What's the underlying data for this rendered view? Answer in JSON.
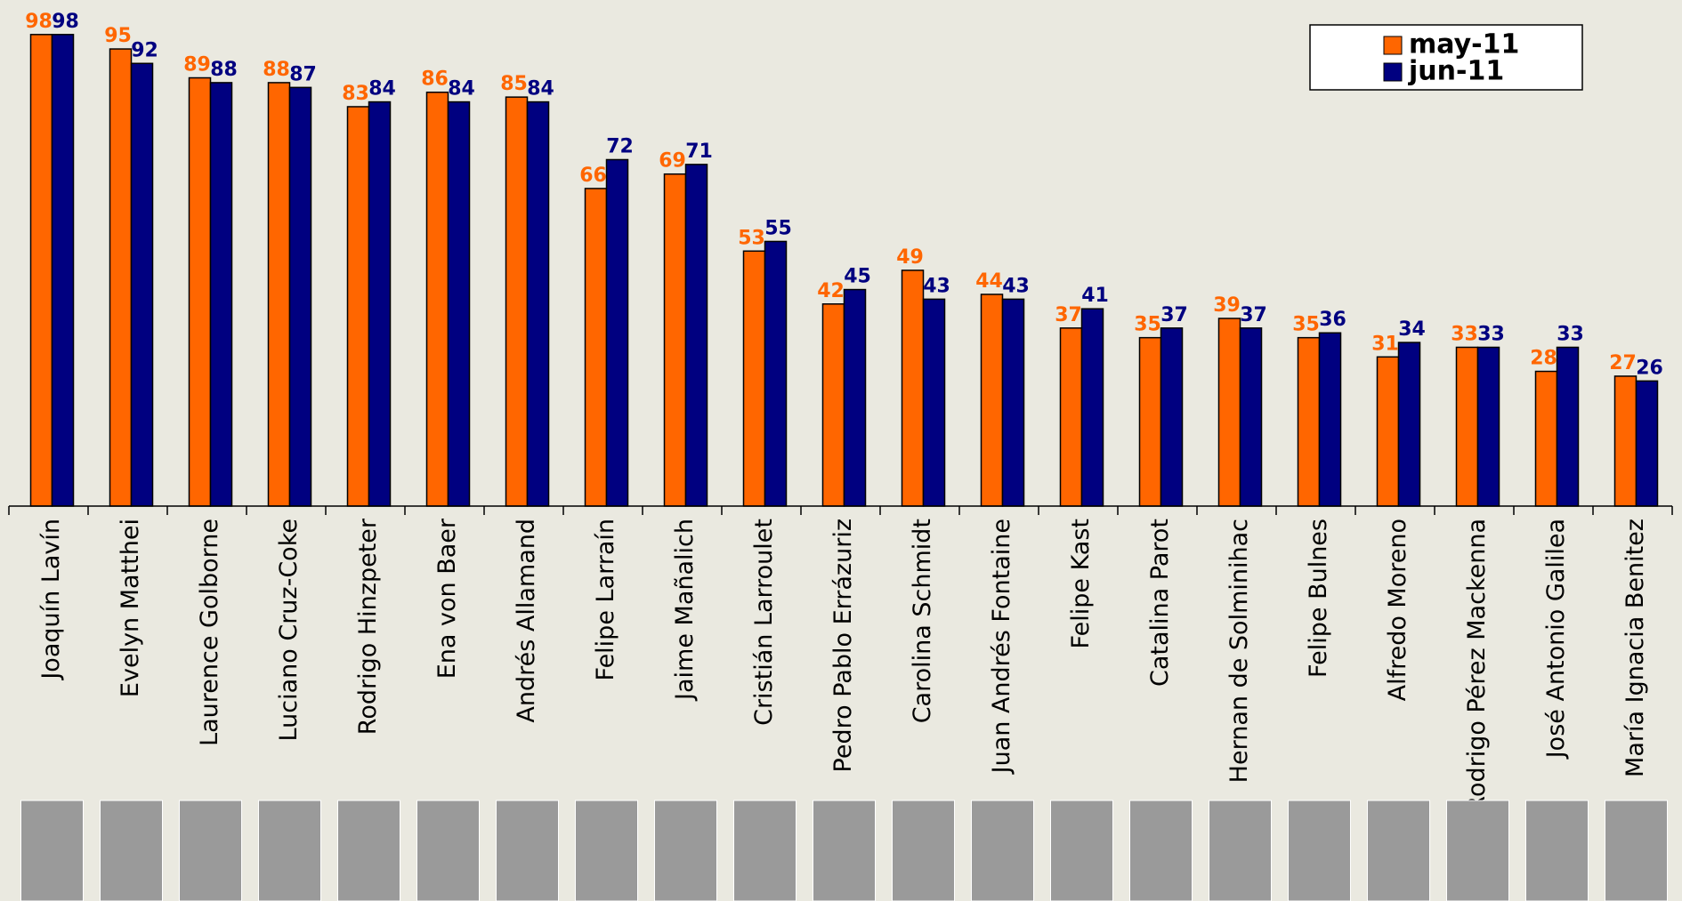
{
  "chart_data": {
    "type": "bar",
    "categories": [
      "Joaquín Lavín",
      "Evelyn Matthei",
      "Laurence Golborne",
      "Luciano Cruz-Coke",
      "Rodrigo Hinzpeter",
      "Ena von Baer",
      "Andrés Allamand",
      "Felipe Larraín",
      "Jaime Mañalich",
      "Cristián Larroulet",
      "Pedro Pablo Errázuriz",
      "Carolina Schmidt",
      "Juan Andrés Fontaine",
      "Felipe Kast",
      "Catalina Parot",
      "Hernan de Solminihac",
      "Felipe Bulnes",
      "Alfredo Moreno",
      "Rodrigo Pérez Mackenna",
      "José Antonio Galilea",
      "María Ignacia Benitez"
    ],
    "series": [
      {
        "name": "may-11",
        "color": "#ff6600",
        "values": [
          98,
          95,
          89,
          88,
          83,
          86,
          85,
          66,
          69,
          53,
          42,
          49,
          44,
          37,
          35,
          39,
          35,
          31,
          33,
          28,
          27
        ]
      },
      {
        "name": "jun-11",
        "color": "#000080",
        "values": [
          98,
          92,
          88,
          87,
          84,
          84,
          84,
          72,
          71,
          55,
          45,
          43,
          43,
          41,
          37,
          37,
          36,
          34,
          33,
          33,
          26
        ]
      }
    ],
    "ylim": [
      0,
      100
    ],
    "legend": "top-right"
  }
}
